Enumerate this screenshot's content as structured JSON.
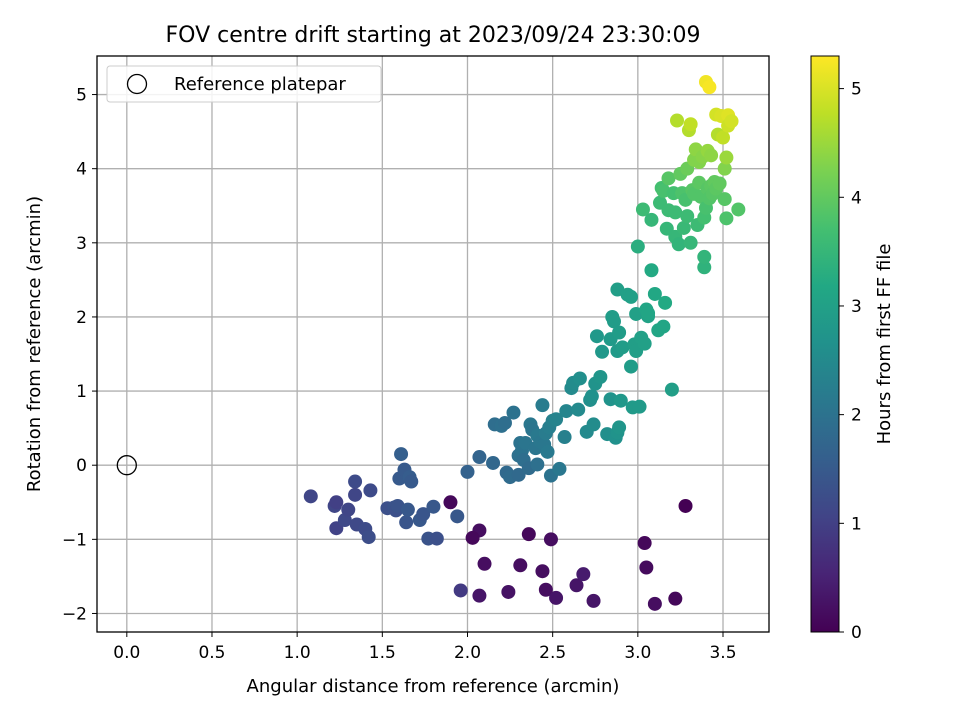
{
  "chart_data": {
    "type": "scatter",
    "title": "FOV centre drift starting at 2023/09/24 23:30:09",
    "xlabel": "Angular distance from reference (arcmin)",
    "ylabel": "Rotation from reference (arcmin)",
    "xlim": [
      -0.175,
      3.77
    ],
    "ylim": [
      -2.25,
      5.52
    ],
    "xticks": [
      0.0,
      0.5,
      1.0,
      1.5,
      2.0,
      2.5,
      3.0,
      3.5
    ],
    "xtick_labels": [
      "0.0",
      "0.5",
      "1.0",
      "1.5",
      "2.0",
      "2.5",
      "3.0",
      "3.5"
    ],
    "yticks": [
      -2,
      -1,
      0,
      1,
      2,
      3,
      4,
      5
    ],
    "ytick_labels": [
      "−2",
      "−1",
      "0",
      "1",
      "2",
      "3",
      "4",
      "5"
    ],
    "grid": true,
    "legend": {
      "position": "top-left",
      "entries": [
        {
          "label": "Reference platepar",
          "marker": "open-circle"
        }
      ]
    },
    "reference_point": {
      "x": 0.0,
      "y": 0.0
    },
    "colorbar": {
      "label": "Hours from first FF file",
      "colormap": "viridis",
      "range": [
        0,
        5.3
      ],
      "ticks": [
        0,
        1,
        2,
        3,
        4,
        5
      ],
      "tick_labels": [
        "0",
        "1",
        "2",
        "3",
        "4",
        "5"
      ]
    },
    "points": [
      [
        1.9,
        -0.5,
        0.1
      ],
      [
        2.07,
        -0.88,
        0.2
      ],
      [
        2.03,
        -0.98,
        0.1
      ],
      [
        2.1,
        -1.33,
        0.2
      ],
      [
        2.07,
        -1.76,
        0.3
      ],
      [
        2.24,
        -1.71,
        0.25
      ],
      [
        2.31,
        -1.35,
        0.2
      ],
      [
        2.36,
        -0.93,
        0.1
      ],
      [
        2.44,
        -1.43,
        0.2
      ],
      [
        2.46,
        -1.68,
        0.2
      ],
      [
        2.52,
        -1.79,
        0.3
      ],
      [
        2.49,
        -1.0,
        0.2
      ],
      [
        2.64,
        -1.62,
        0.3
      ],
      [
        2.68,
        -1.47,
        0.4
      ],
      [
        2.74,
        -1.83,
        0.3
      ],
      [
        3.04,
        -1.05,
        0.1
      ],
      [
        3.05,
        -1.38,
        0.15
      ],
      [
        3.1,
        -1.87,
        0.2
      ],
      [
        3.22,
        -1.8,
        0.1
      ],
      [
        3.28,
        -0.55,
        0.0
      ],
      [
        1.96,
        -1.69,
        0.9
      ],
      [
        1.08,
        -0.42,
        1.1
      ],
      [
        1.22,
        -0.55,
        1.1
      ],
      [
        1.23,
        -0.5,
        1.0
      ],
      [
        1.23,
        -0.85,
        1.05
      ],
      [
        1.28,
        -0.74,
        1.15
      ],
      [
        1.3,
        -0.6,
        1.1
      ],
      [
        1.34,
        -0.22,
        1.2
      ],
      [
        1.34,
        -0.4,
        1.1
      ],
      [
        1.35,
        -0.8,
        1.15
      ],
      [
        1.4,
        -0.86,
        1.2
      ],
      [
        1.42,
        -0.97,
        1.25
      ],
      [
        1.43,
        -0.34,
        1.2
      ],
      [
        1.53,
        -0.58,
        1.3
      ],
      [
        1.57,
        -0.57,
        1.35
      ],
      [
        1.58,
        -0.61,
        1.3
      ],
      [
        1.59,
        -0.55,
        1.35
      ],
      [
        1.6,
        -0.18,
        1.5
      ],
      [
        1.61,
        0.15,
        1.6
      ],
      [
        1.63,
        -0.06,
        1.5
      ],
      [
        1.64,
        -0.77,
        1.4
      ],
      [
        1.65,
        -0.6,
        1.45
      ],
      [
        1.66,
        -0.16,
        1.55
      ],
      [
        1.67,
        -0.22,
        1.5
      ],
      [
        1.72,
        -0.74,
        1.45
      ],
      [
        1.74,
        -0.66,
        1.4
      ],
      [
        1.77,
        -0.99,
        1.35
      ],
      [
        1.8,
        -0.56,
        1.45
      ],
      [
        1.82,
        -0.99,
        1.3
      ],
      [
        1.94,
        -0.69,
        1.45
      ],
      [
        2.0,
        -0.09,
        1.65
      ],
      [
        2.07,
        0.11,
        1.7
      ],
      [
        2.15,
        0.03,
        1.75
      ],
      [
        2.16,
        0.55,
        1.9
      ],
      [
        2.2,
        0.53,
        1.95
      ],
      [
        2.22,
        0.57,
        1.9
      ],
      [
        2.23,
        -0.1,
        1.8
      ],
      [
        2.25,
        -0.16,
        1.85
      ],
      [
        2.27,
        0.71,
        2.0
      ],
      [
        2.3,
        -0.13,
        1.8
      ],
      [
        2.3,
        0.13,
        1.95
      ],
      [
        2.31,
        0.3,
        2.0
      ],
      [
        2.32,
        0.2,
        2.0
      ],
      [
        2.33,
        0.07,
        1.9
      ],
      [
        2.34,
        0.3,
        2.05
      ],
      [
        2.36,
        -0.04,
        1.85
      ],
      [
        2.37,
        0.55,
        2.1
      ],
      [
        2.38,
        0.48,
        2.05
      ],
      [
        2.4,
        0.23,
        2.05
      ],
      [
        2.41,
        0.4,
        2.15
      ],
      [
        2.41,
        0.01,
        1.95
      ],
      [
        2.43,
        0.31,
        2.1
      ],
      [
        2.44,
        0.81,
        2.2
      ],
      [
        2.45,
        0.28,
        2.1
      ],
      [
        2.46,
        0.43,
        2.2
      ],
      [
        2.47,
        0.18,
        2.15
      ],
      [
        2.48,
        0.51,
        2.25
      ],
      [
        2.49,
        -0.14,
        2.0
      ],
      [
        2.5,
        0.6,
        2.3
      ],
      [
        2.52,
        0.62,
        2.35
      ],
      [
        2.54,
        -0.05,
        2.1
      ],
      [
        2.57,
        0.38,
        2.3
      ],
      [
        2.58,
        0.73,
        2.4
      ],
      [
        2.61,
        1.04,
        2.5
      ],
      [
        2.62,
        1.11,
        2.55
      ],
      [
        2.65,
        0.75,
        2.5
      ],
      [
        2.66,
        1.17,
        2.6
      ],
      [
        2.7,
        0.45,
        2.5
      ],
      [
        2.72,
        0.88,
        2.6
      ],
      [
        2.73,
        0.93,
        2.65
      ],
      [
        2.74,
        0.55,
        2.55
      ],
      [
        2.75,
        1.1,
        2.7
      ],
      [
        2.76,
        1.74,
        2.8
      ],
      [
        2.78,
        1.19,
        2.75
      ],
      [
        2.79,
        1.53,
        2.8
      ],
      [
        2.82,
        0.42,
        2.6
      ],
      [
        2.84,
        0.89,
        2.7
      ],
      [
        2.84,
        1.7,
        2.85
      ],
      [
        2.85,
        2.0,
        2.9
      ],
      [
        2.86,
        1.94,
        2.9
      ],
      [
        2.87,
        0.37,
        2.65
      ],
      [
        2.88,
        0.44,
        2.7
      ],
      [
        2.88,
        1.54,
        2.85
      ],
      [
        2.88,
        2.37,
        2.95
      ],
      [
        2.89,
        0.51,
        2.75
      ],
      [
        2.89,
        1.79,
        2.9
      ],
      [
        2.9,
        0.87,
        2.8
      ],
      [
        2.91,
        1.59,
        2.9
      ],
      [
        2.94,
        2.3,
        3.0
      ],
      [
        2.96,
        1.33,
        2.9
      ],
      [
        2.96,
        2.27,
        3.0
      ],
      [
        2.97,
        0.78,
        2.85
      ],
      [
        2.98,
        1.63,
        2.95
      ],
      [
        2.99,
        2.04,
        3.0
      ],
      [
        2.99,
        1.54,
        2.95
      ],
      [
        3.0,
        2.95,
        3.3
      ],
      [
        3.01,
        0.79,
        2.85
      ],
      [
        3.02,
        1.72,
        3.0
      ],
      [
        3.03,
        3.45,
        3.6
      ],
      [
        3.04,
        1.64,
        3.0
      ],
      [
        3.05,
        2.1,
        3.1
      ],
      [
        3.06,
        2.01,
        3.05
      ],
      [
        3.06,
        2.05,
        3.1
      ],
      [
        3.08,
        2.63,
        3.2
      ],
      [
        3.08,
        3.31,
        3.5
      ],
      [
        3.1,
        2.31,
        3.15
      ],
      [
        3.12,
        1.82,
        3.1
      ],
      [
        3.13,
        3.54,
        3.6
      ],
      [
        3.14,
        3.74,
        3.7
      ],
      [
        3.15,
        1.87,
        3.1
      ],
      [
        3.15,
        3.7,
        3.75
      ],
      [
        3.16,
        2.19,
        3.2
      ],
      [
        3.17,
        3.19,
        3.5
      ],
      [
        3.18,
        3.44,
        3.6
      ],
      [
        3.18,
        3.87,
        3.9
      ],
      [
        3.2,
        1.02,
        2.95
      ],
      [
        3.21,
        3.67,
        3.7
      ],
      [
        3.22,
        3.08,
        3.5
      ],
      [
        3.22,
        3.41,
        3.6
      ],
      [
        3.23,
        4.65,
        4.7
      ],
      [
        3.24,
        2.98,
        3.45
      ],
      [
        3.25,
        3.93,
        4.0
      ],
      [
        3.26,
        3.67,
        3.8
      ],
      [
        3.27,
        3.2,
        3.55
      ],
      [
        3.28,
        3.58,
        3.75
      ],
      [
        3.29,
        3.36,
        3.6
      ],
      [
        3.29,
        4.0,
        4.1
      ],
      [
        3.3,
        4.52,
        4.7
      ],
      [
        3.31,
        4.6,
        4.8
      ],
      [
        3.31,
        3.0,
        3.5
      ],
      [
        3.32,
        3.71,
        3.9
      ],
      [
        3.33,
        4.12,
        4.3
      ],
      [
        3.33,
        3.66,
        3.85
      ],
      [
        3.34,
        4.26,
        4.4
      ],
      [
        3.35,
        3.24,
        3.6
      ],
      [
        3.36,
        3.81,
        3.95
      ],
      [
        3.36,
        4.09,
        4.3
      ],
      [
        3.37,
        3.62,
        3.85
      ],
      [
        3.38,
        4.16,
        4.35
      ],
      [
        3.39,
        2.67,
        3.4
      ],
      [
        3.39,
        3.34,
        3.7
      ],
      [
        3.39,
        2.81,
        3.45
      ],
      [
        3.4,
        5.17,
        5.2
      ],
      [
        3.4,
        3.47,
        3.75
      ],
      [
        3.41,
        4.24,
        4.45
      ],
      [
        3.41,
        3.73,
        3.9
      ],
      [
        3.42,
        5.1,
        5.25
      ],
      [
        3.42,
        3.6,
        3.85
      ],
      [
        3.43,
        3.77,
        3.95
      ],
      [
        3.43,
        4.18,
        4.4
      ],
      [
        3.44,
        3.66,
        3.9
      ],
      [
        3.45,
        3.82,
        4.0
      ],
      [
        3.46,
        4.73,
        4.95
      ],
      [
        3.46,
        3.73,
        3.95
      ],
      [
        3.47,
        4.46,
        4.7
      ],
      [
        3.48,
        3.8,
        4.0
      ],
      [
        3.49,
        4.71,
        5.0
      ],
      [
        3.5,
        4.42,
        4.8
      ],
      [
        3.51,
        3.59,
        3.9
      ],
      [
        3.51,
        4.0,
        4.3
      ],
      [
        3.52,
        3.33,
        3.8
      ],
      [
        3.53,
        4.72,
        5.05
      ],
      [
        3.52,
        4.15,
        4.5
      ],
      [
        3.53,
        4.58,
        4.9
      ],
      [
        3.55,
        4.64,
        4.95
      ],
      [
        3.59,
        3.45,
        3.85
      ]
    ]
  }
}
